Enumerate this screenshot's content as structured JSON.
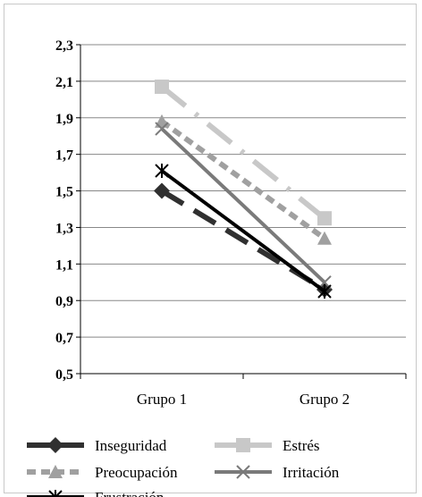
{
  "chart_data": {
    "type": "line",
    "title": "",
    "xlabel": "",
    "ylabel": "",
    "categories": [
      "Grupo 1",
      "Grupo 2"
    ],
    "ylim": [
      0.5,
      2.3
    ],
    "yticks": [
      "0,5",
      "0,7",
      "0,9",
      "1,1",
      "1,3",
      "1,5",
      "1,7",
      "1,9",
      "2,1",
      "2,3"
    ],
    "grid": true,
    "legend_position": "bottom",
    "series": [
      {
        "name": "Inseguridad",
        "values": [
          1.5,
          0.96
        ],
        "color": "#303030",
        "dash": "long-dash",
        "marker": "diamond"
      },
      {
        "name": "Estrés",
        "values": [
          2.07,
          1.35
        ],
        "color": "#c8c8c8",
        "dash": "dash-dot",
        "marker": "square"
      },
      {
        "name": "Preocupación",
        "values": [
          1.88,
          1.24
        ],
        "color": "#a0a0a0",
        "dash": "dash",
        "marker": "triangle"
      },
      {
        "name": "Irritación",
        "values": [
          1.84,
          1.0
        ],
        "color": "#7a7a7a",
        "dash": "solid",
        "marker": "x"
      },
      {
        "name": "Frustración",
        "values": [
          1.61,
          0.95
        ],
        "color": "#000000",
        "dash": "solid",
        "marker": "star"
      }
    ]
  }
}
